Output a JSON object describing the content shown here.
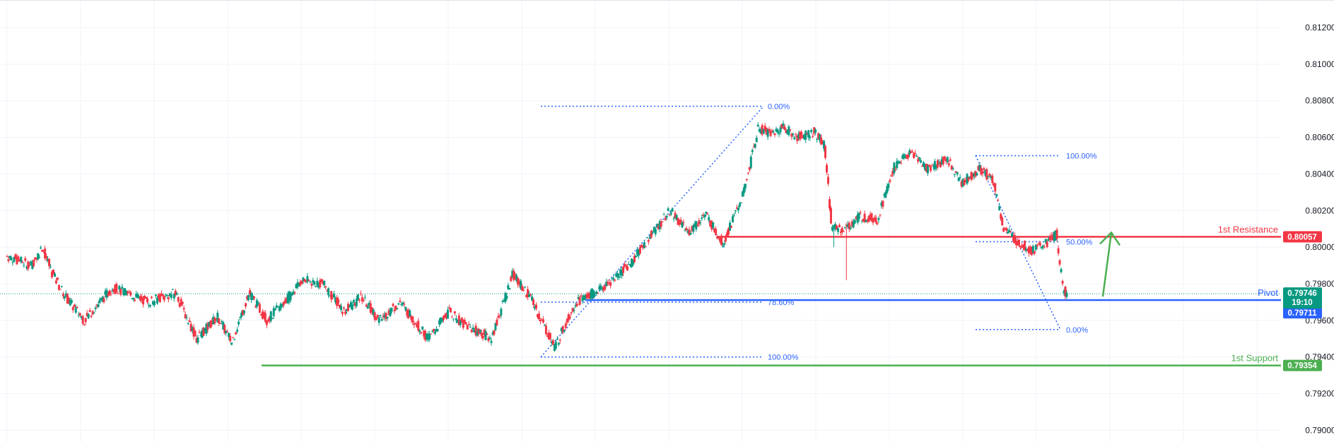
{
  "chart_data": {
    "type": "candlestick",
    "y_axis": {
      "position": "right",
      "ticks": [
        "0.81200",
        "0.81000",
        "0.80800",
        "0.80600",
        "0.80400",
        "0.80200",
        "0.80000",
        "0.79800",
        "0.79600",
        "0.79400",
        "0.79200",
        "0.79000"
      ],
      "range": [
        0.7888,
        0.8131
      ]
    },
    "grid": true,
    "current_price": {
      "value": "0.79746",
      "countdown": "19:10",
      "color": "#089981"
    },
    "levels": [
      {
        "name": "1st Resistance",
        "price": "0.80057",
        "value": 0.80057,
        "color": "#f23645"
      },
      {
        "name": "Pivot",
        "price": "0.79711",
        "value": 0.79711,
        "color": "#2962ff"
      },
      {
        "name": "1st Support",
        "price": "0.79354",
        "value": 0.79354,
        "color": "#4caf50"
      }
    ],
    "fibonacci": [
      {
        "levels": [
          {
            "label": "0.00%",
            "value": 0.8077
          },
          {
            "label": "78.60%",
            "value": 0.797
          },
          {
            "label": "100.00%",
            "value": 0.794
          }
        ]
      },
      {
        "levels": [
          {
            "label": "100.00%",
            "value": 0.805
          },
          {
            "label": "50.00%",
            "value": 0.8003
          },
          {
            "label": "0.00%",
            "value": 0.7955
          }
        ]
      }
    ],
    "arrow": {
      "direction": "up",
      "from_value": 0.7973,
      "to_value": 0.8008,
      "color": "#4caf50"
    },
    "candle_colors": {
      "up": "#089981",
      "down": "#f23645"
    },
    "series_anchors": [
      [
        0,
        0.7995
      ],
      [
        35,
        0.799
      ],
      [
        50,
        0.8
      ],
      [
        65,
        0.7985
      ],
      [
        85,
        0.7972
      ],
      [
        110,
        0.796
      ],
      [
        150,
        0.7978
      ],
      [
        200,
        0.797
      ],
      [
        240,
        0.7975
      ],
      [
        270,
        0.795
      ],
      [
        300,
        0.7962
      ],
      [
        320,
        0.7948
      ],
      [
        345,
        0.7975
      ],
      [
        370,
        0.796
      ],
      [
        395,
        0.797
      ],
      [
        420,
        0.7982
      ],
      [
        450,
        0.798
      ],
      [
        480,
        0.7965
      ],
      [
        505,
        0.7973
      ],
      [
        530,
        0.796
      ],
      [
        560,
        0.797
      ],
      [
        600,
        0.795
      ],
      [
        630,
        0.7965
      ],
      [
        650,
        0.7958
      ],
      [
        690,
        0.795
      ],
      [
        720,
        0.7985
      ],
      [
        745,
        0.7973
      ],
      [
        780,
        0.7945
      ],
      [
        810,
        0.797
      ],
      [
        850,
        0.7978
      ],
      [
        890,
        0.7992
      ],
      [
        920,
        0.8008
      ],
      [
        945,
        0.802
      ],
      [
        970,
        0.8008
      ],
      [
        995,
        0.8018
      ],
      [
        1020,
        0.8002
      ],
      [
        1050,
        0.803
      ],
      [
        1070,
        0.8065
      ],
      [
        1090,
        0.8062
      ],
      [
        1105,
        0.8066
      ],
      [
        1125,
        0.806
      ],
      [
        1150,
        0.8063
      ],
      [
        1165,
        0.8055
      ],
      [
        1175,
        0.801
      ],
      [
        1195,
        0.801
      ],
      [
        1215,
        0.8017
      ],
      [
        1240,
        0.8015
      ],
      [
        1265,
        0.8045
      ],
      [
        1290,
        0.8052
      ],
      [
        1310,
        0.8043
      ],
      [
        1340,
        0.8048
      ],
      [
        1360,
        0.8035
      ],
      [
        1385,
        0.8043
      ],
      [
        1405,
        0.8037
      ],
      [
        1420,
        0.801
      ],
      [
        1440,
        0.8003
      ],
      [
        1460,
        0.7998
      ],
      [
        1480,
        0.8002
      ],
      [
        1495,
        0.8007
      ],
      [
        1505,
        0.7977
      ],
      [
        1510,
        0.7974
      ]
    ]
  }
}
